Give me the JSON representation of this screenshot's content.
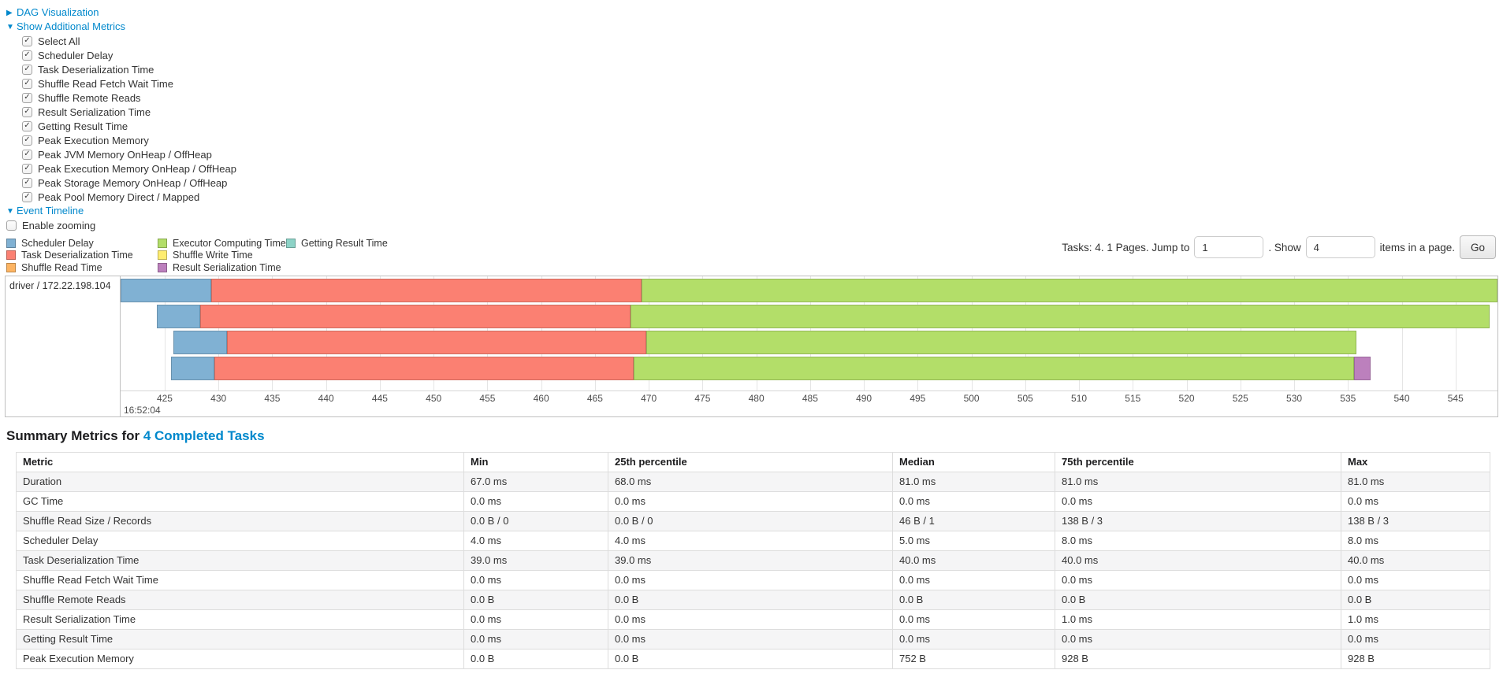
{
  "colors": {
    "link": "#0088cc",
    "scheduler_delay": "#80B1D3",
    "task_deserialization": "#FB8072",
    "shuffle_read": "#FDB462",
    "executor_computing": "#B3DE69",
    "shuffle_write": "#FFED6F",
    "result_serialization": "#BC80BD",
    "getting_result": "#8DD3C7"
  },
  "controls": {
    "dag_label": "DAG Visualization",
    "metrics_toggle_label": "Show Additional Metrics",
    "metric_checkboxes": [
      {
        "label": "Select All",
        "checked": true
      },
      {
        "label": "Scheduler Delay",
        "checked": true
      },
      {
        "label": "Task Deserialization Time",
        "checked": true
      },
      {
        "label": "Shuffle Read Fetch Wait Time",
        "checked": true
      },
      {
        "label": "Shuffle Remote Reads",
        "checked": true
      },
      {
        "label": "Result Serialization Time",
        "checked": true
      },
      {
        "label": "Getting Result Time",
        "checked": true
      },
      {
        "label": "Peak Execution Memory",
        "checked": true
      },
      {
        "label": "Peak JVM Memory OnHeap / OffHeap",
        "checked": true
      },
      {
        "label": "Peak Execution Memory OnHeap / OffHeap",
        "checked": true
      },
      {
        "label": "Peak Storage Memory OnHeap / OffHeap",
        "checked": true
      },
      {
        "label": "Peak Pool Memory Direct / Mapped",
        "checked": true
      }
    ],
    "event_timeline_label": "Event Timeline",
    "enable_zooming_label": "Enable zooming",
    "enable_zooming_checked": false
  },
  "legend": {
    "columns": [
      [
        {
          "label": "Scheduler Delay",
          "metric": "scheduler_delay"
        },
        {
          "label": "Task Deserialization Time",
          "metric": "task_deserialization"
        },
        {
          "label": "Shuffle Read Time",
          "metric": "shuffle_read"
        }
      ],
      [
        {
          "label": "Executor Computing Time",
          "metric": "executor_computing"
        },
        {
          "label": "Shuffle Write Time",
          "metric": "shuffle_write"
        },
        {
          "label": "Result Serialization Time",
          "metric": "result_serialization"
        }
      ],
      [
        {
          "label": "Getting Result Time",
          "metric": "getting_result"
        }
      ]
    ]
  },
  "pagination": {
    "tasks_text": "Tasks: 4. 1 Pages. Jump to",
    "jump_value": "1",
    "show_text": ". Show",
    "show_value": "4",
    "items_text": "items in a page.",
    "go_label": "Go"
  },
  "chart_data": {
    "type": "timeline",
    "title": "Event Timeline",
    "executor_label": "driver / 172.22.198.104",
    "x_axis": {
      "unit": "milliseconds after 16:52:04",
      "min": 420.9,
      "max": 548.9,
      "tick_start": 425,
      "tick_end": 550,
      "tick_step": 5,
      "major_time_label": "16:52:04"
    },
    "tasks": [
      {
        "name": "task-bar-1",
        "segments": [
          {
            "metric": "scheduler_delay",
            "from": 420.9,
            "to": 429.3
          },
          {
            "metric": "task_deserialization",
            "from": 429.3,
            "to": 469.3
          },
          {
            "metric": "executor_computing",
            "from": 469.3,
            "to": 548.9
          }
        ]
      },
      {
        "name": "task-bar-2",
        "segments": [
          {
            "metric": "scheduler_delay",
            "from": 424.3,
            "to": 428.3
          },
          {
            "metric": "task_deserialization",
            "from": 428.3,
            "to": 468.3
          },
          {
            "metric": "executor_computing",
            "from": 468.3,
            "to": 548.2
          }
        ]
      },
      {
        "name": "task-bar-3",
        "segments": [
          {
            "metric": "scheduler_delay",
            "from": 425.8,
            "to": 430.8
          },
          {
            "metric": "task_deserialization",
            "from": 430.8,
            "to": 469.8
          },
          {
            "metric": "executor_computing",
            "from": 469.8,
            "to": 535.8
          }
        ]
      },
      {
        "name": "task-bar-4",
        "segments": [
          {
            "metric": "scheduler_delay",
            "from": 425.6,
            "to": 429.6
          },
          {
            "metric": "task_deserialization",
            "from": 429.6,
            "to": 468.6
          },
          {
            "metric": "executor_computing",
            "from": 468.6,
            "to": 535.6
          },
          {
            "metric": "result_serialization",
            "from": 535.6,
            "to": 537.1
          }
        ]
      }
    ]
  },
  "summary": {
    "heading_prefix": "Summary Metrics for ",
    "heading_link": "4 Completed Tasks",
    "table": {
      "columns": [
        "Metric",
        "Min",
        "25th percentile",
        "Median",
        "75th percentile",
        "Max"
      ],
      "rows": [
        [
          "Duration",
          "67.0 ms",
          "68.0 ms",
          "81.0 ms",
          "81.0 ms",
          "81.0 ms"
        ],
        [
          "GC Time",
          "0.0 ms",
          "0.0 ms",
          "0.0 ms",
          "0.0 ms",
          "0.0 ms"
        ],
        [
          "Shuffle Read Size / Records",
          "0.0 B / 0",
          "0.0 B / 0",
          "46 B / 1",
          "138 B / 3",
          "138 B / 3"
        ],
        [
          "Scheduler Delay",
          "4.0 ms",
          "4.0 ms",
          "5.0 ms",
          "8.0 ms",
          "8.0 ms"
        ],
        [
          "Task Deserialization Time",
          "39.0 ms",
          "39.0 ms",
          "40.0 ms",
          "40.0 ms",
          "40.0 ms"
        ],
        [
          "Shuffle Read Fetch Wait Time",
          "0.0 ms",
          "0.0 ms",
          "0.0 ms",
          "0.0 ms",
          "0.0 ms"
        ],
        [
          "Shuffle Remote Reads",
          "0.0 B",
          "0.0 B",
          "0.0 B",
          "0.0 B",
          "0.0 B"
        ],
        [
          "Result Serialization Time",
          "0.0 ms",
          "0.0 ms",
          "0.0 ms",
          "1.0 ms",
          "1.0 ms"
        ],
        [
          "Getting Result Time",
          "0.0 ms",
          "0.0 ms",
          "0.0 ms",
          "0.0 ms",
          "0.0 ms"
        ],
        [
          "Peak Execution Memory",
          "0.0 B",
          "0.0 B",
          "752 B",
          "928 B",
          "928 B"
        ]
      ]
    }
  }
}
